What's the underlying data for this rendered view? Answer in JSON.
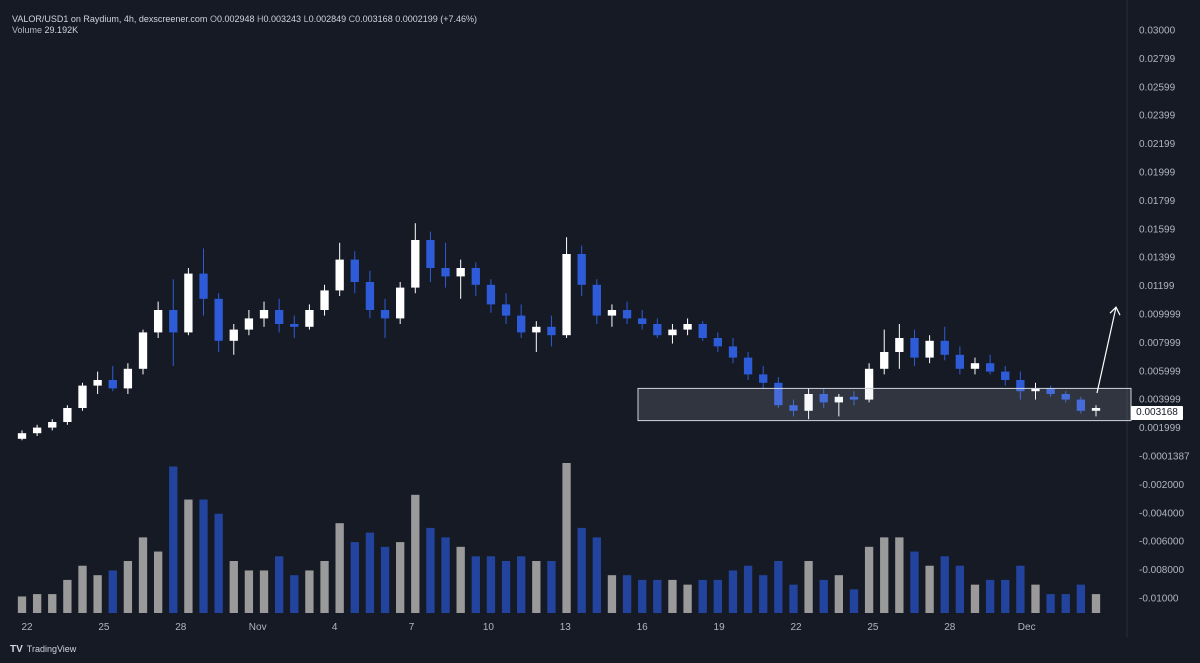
{
  "legend": {
    "symbol": "VALOR/USD1 on Raydium, 4h, dexscreener.com",
    "open_label": "O",
    "open": "0.002948",
    "high_label": "H",
    "high": "0.003243",
    "low_label": "L",
    "low": "0.002849",
    "close_label": "C",
    "close": "0.003168",
    "change": "0.0002199 (+7.46%)",
    "volume_label": "Volume",
    "volume": "29.192K"
  },
  "price_tag": "0.003168",
  "branding": {
    "logo_mark": "TV",
    "name": "TradingView"
  },
  "colors": {
    "background": "#161a25",
    "up": "#ffffff",
    "down": "#2e5bd8",
    "volume_up": "#9a9a9a",
    "volume_down": "#22449e",
    "axis_text": "#b2b5be"
  },
  "chart_data": {
    "type": "candlestick",
    "timeframe": "4h",
    "price_axis_labels": [
      "0.03000",
      "0.02799",
      "0.02599",
      "0.02399",
      "0.02199",
      "0.01999",
      "0.01799",
      "0.01599",
      "0.01399",
      "0.01199",
      "0.009999",
      "0.007999",
      "0.005999",
      "0.003999",
      "0.001999",
      "-0.0001387",
      "-0.002000",
      "-0.004000",
      "-0.006000",
      "-0.008000",
      "-0.01000"
    ],
    "time_axis_labels": [
      "22",
      "25",
      "28",
      "Nov",
      "4",
      "7",
      "10",
      "13",
      "16",
      "19",
      "22",
      "25",
      "28",
      "Dec"
    ],
    "ylim": [
      0.0,
      0.0306
    ],
    "annotations": [
      {
        "type": "rectangle",
        "price_range": [
          0.0021,
          0.0044
        ],
        "start_label": "15",
        "end_label": "Dec+2"
      },
      {
        "type": "arrow",
        "direction": "up",
        "to_price": 0.0102
      }
    ],
    "series": [
      {
        "name": "Price",
        "ohlc_approx": [
          [
            0.0008,
            0.0014,
            0.0007,
            0.0012
          ],
          [
            0.0012,
            0.0018,
            0.001,
            0.0016
          ],
          [
            0.0016,
            0.0022,
            0.0014,
            0.002
          ],
          [
            0.002,
            0.0032,
            0.0018,
            0.003
          ],
          [
            0.003,
            0.0048,
            0.0028,
            0.0046
          ],
          [
            0.0046,
            0.0056,
            0.004,
            0.005
          ],
          [
            0.005,
            0.006,
            0.0042,
            0.0044
          ],
          [
            0.0044,
            0.0062,
            0.004,
            0.0058
          ],
          [
            0.0058,
            0.0086,
            0.0054,
            0.0084
          ],
          [
            0.0084,
            0.0106,
            0.008,
            0.01
          ],
          [
            0.01,
            0.0122,
            0.006,
            0.0084
          ],
          [
            0.0084,
            0.013,
            0.0082,
            0.0126
          ],
          [
            0.0126,
            0.0144,
            0.0096,
            0.0108
          ],
          [
            0.0108,
            0.0112,
            0.007,
            0.0078
          ],
          [
            0.0078,
            0.009,
            0.0068,
            0.0086
          ],
          [
            0.0086,
            0.01,
            0.0082,
            0.0094
          ],
          [
            0.0094,
            0.0106,
            0.0088,
            0.01
          ],
          [
            0.01,
            0.0108,
            0.0084,
            0.009
          ],
          [
            0.009,
            0.0096,
            0.008,
            0.0088
          ],
          [
            0.0088,
            0.0104,
            0.0086,
            0.01
          ],
          [
            0.01,
            0.0118,
            0.0096,
            0.0114
          ],
          [
            0.0114,
            0.0148,
            0.011,
            0.0136
          ],
          [
            0.0136,
            0.0142,
            0.0112,
            0.012
          ],
          [
            0.012,
            0.0128,
            0.0094,
            0.01
          ],
          [
            0.01,
            0.0108,
            0.008,
            0.0094
          ],
          [
            0.0094,
            0.012,
            0.009,
            0.0116
          ],
          [
            0.0116,
            0.0162,
            0.0112,
            0.015
          ],
          [
            0.015,
            0.0156,
            0.012,
            0.013
          ],
          [
            0.013,
            0.0148,
            0.0116,
            0.0124
          ],
          [
            0.0124,
            0.0136,
            0.0108,
            0.013
          ],
          [
            0.013,
            0.0134,
            0.011,
            0.0118
          ],
          [
            0.0118,
            0.0122,
            0.0098,
            0.0104
          ],
          [
            0.0104,
            0.0112,
            0.009,
            0.0096
          ],
          [
            0.0096,
            0.0104,
            0.008,
            0.0084
          ],
          [
            0.0084,
            0.0092,
            0.007,
            0.0088
          ],
          [
            0.0088,
            0.0096,
            0.0074,
            0.0082
          ],
          [
            0.0082,
            0.0152,
            0.008,
            0.014
          ],
          [
            0.014,
            0.0146,
            0.011,
            0.0118
          ],
          [
            0.0118,
            0.0122,
            0.009,
            0.0096
          ],
          [
            0.0096,
            0.0104,
            0.0088,
            0.01
          ],
          [
            0.01,
            0.0106,
            0.009,
            0.0094
          ],
          [
            0.0094,
            0.01,
            0.0086,
            0.009
          ],
          [
            0.009,
            0.0094,
            0.008,
            0.0082
          ],
          [
            0.0082,
            0.009,
            0.0076,
            0.0086
          ],
          [
            0.0086,
            0.0094,
            0.0082,
            0.009
          ],
          [
            0.009,
            0.0092,
            0.0078,
            0.008
          ],
          [
            0.008,
            0.0084,
            0.007,
            0.0074
          ],
          [
            0.0074,
            0.008,
            0.0062,
            0.0066
          ],
          [
            0.0066,
            0.007,
            0.005,
            0.0054
          ],
          [
            0.0054,
            0.006,
            0.0044,
            0.0048
          ],
          [
            0.0048,
            0.0052,
            0.003,
            0.0032
          ],
          [
            0.0032,
            0.0036,
            0.0024,
            0.0028
          ],
          [
            0.0028,
            0.0044,
            0.0022,
            0.004
          ],
          [
            0.004,
            0.0044,
            0.003,
            0.0034
          ],
          [
            0.0034,
            0.004,
            0.0024,
            0.0038
          ],
          [
            0.0038,
            0.0042,
            0.0032,
            0.0036
          ],
          [
            0.0036,
            0.0062,
            0.0034,
            0.0058
          ],
          [
            0.0058,
            0.0086,
            0.0054,
            0.007
          ],
          [
            0.007,
            0.009,
            0.0058,
            0.008
          ],
          [
            0.008,
            0.0086,
            0.006,
            0.0066
          ],
          [
            0.0066,
            0.0082,
            0.0062,
            0.0078
          ],
          [
            0.0078,
            0.0088,
            0.0064,
            0.0068
          ],
          [
            0.0068,
            0.0074,
            0.0054,
            0.0058
          ],
          [
            0.0058,
            0.0066,
            0.0054,
            0.0062
          ],
          [
            0.0062,
            0.0068,
            0.0054,
            0.0056
          ],
          [
            0.0056,
            0.006,
            0.0046,
            0.005
          ],
          [
            0.005,
            0.0056,
            0.0036,
            0.0042
          ],
          [
            0.0042,
            0.0048,
            0.0036,
            0.0044
          ],
          [
            0.0044,
            0.0046,
            0.0038,
            0.004
          ],
          [
            0.004,
            0.0042,
            0.0034,
            0.0036
          ],
          [
            0.0036,
            0.0038,
            0.0026,
            0.0028
          ],
          [
            0.0028,
            0.0032,
            0.0024,
            0.003
          ]
        ]
      },
      {
        "name": "Volume"
      }
    ]
  }
}
